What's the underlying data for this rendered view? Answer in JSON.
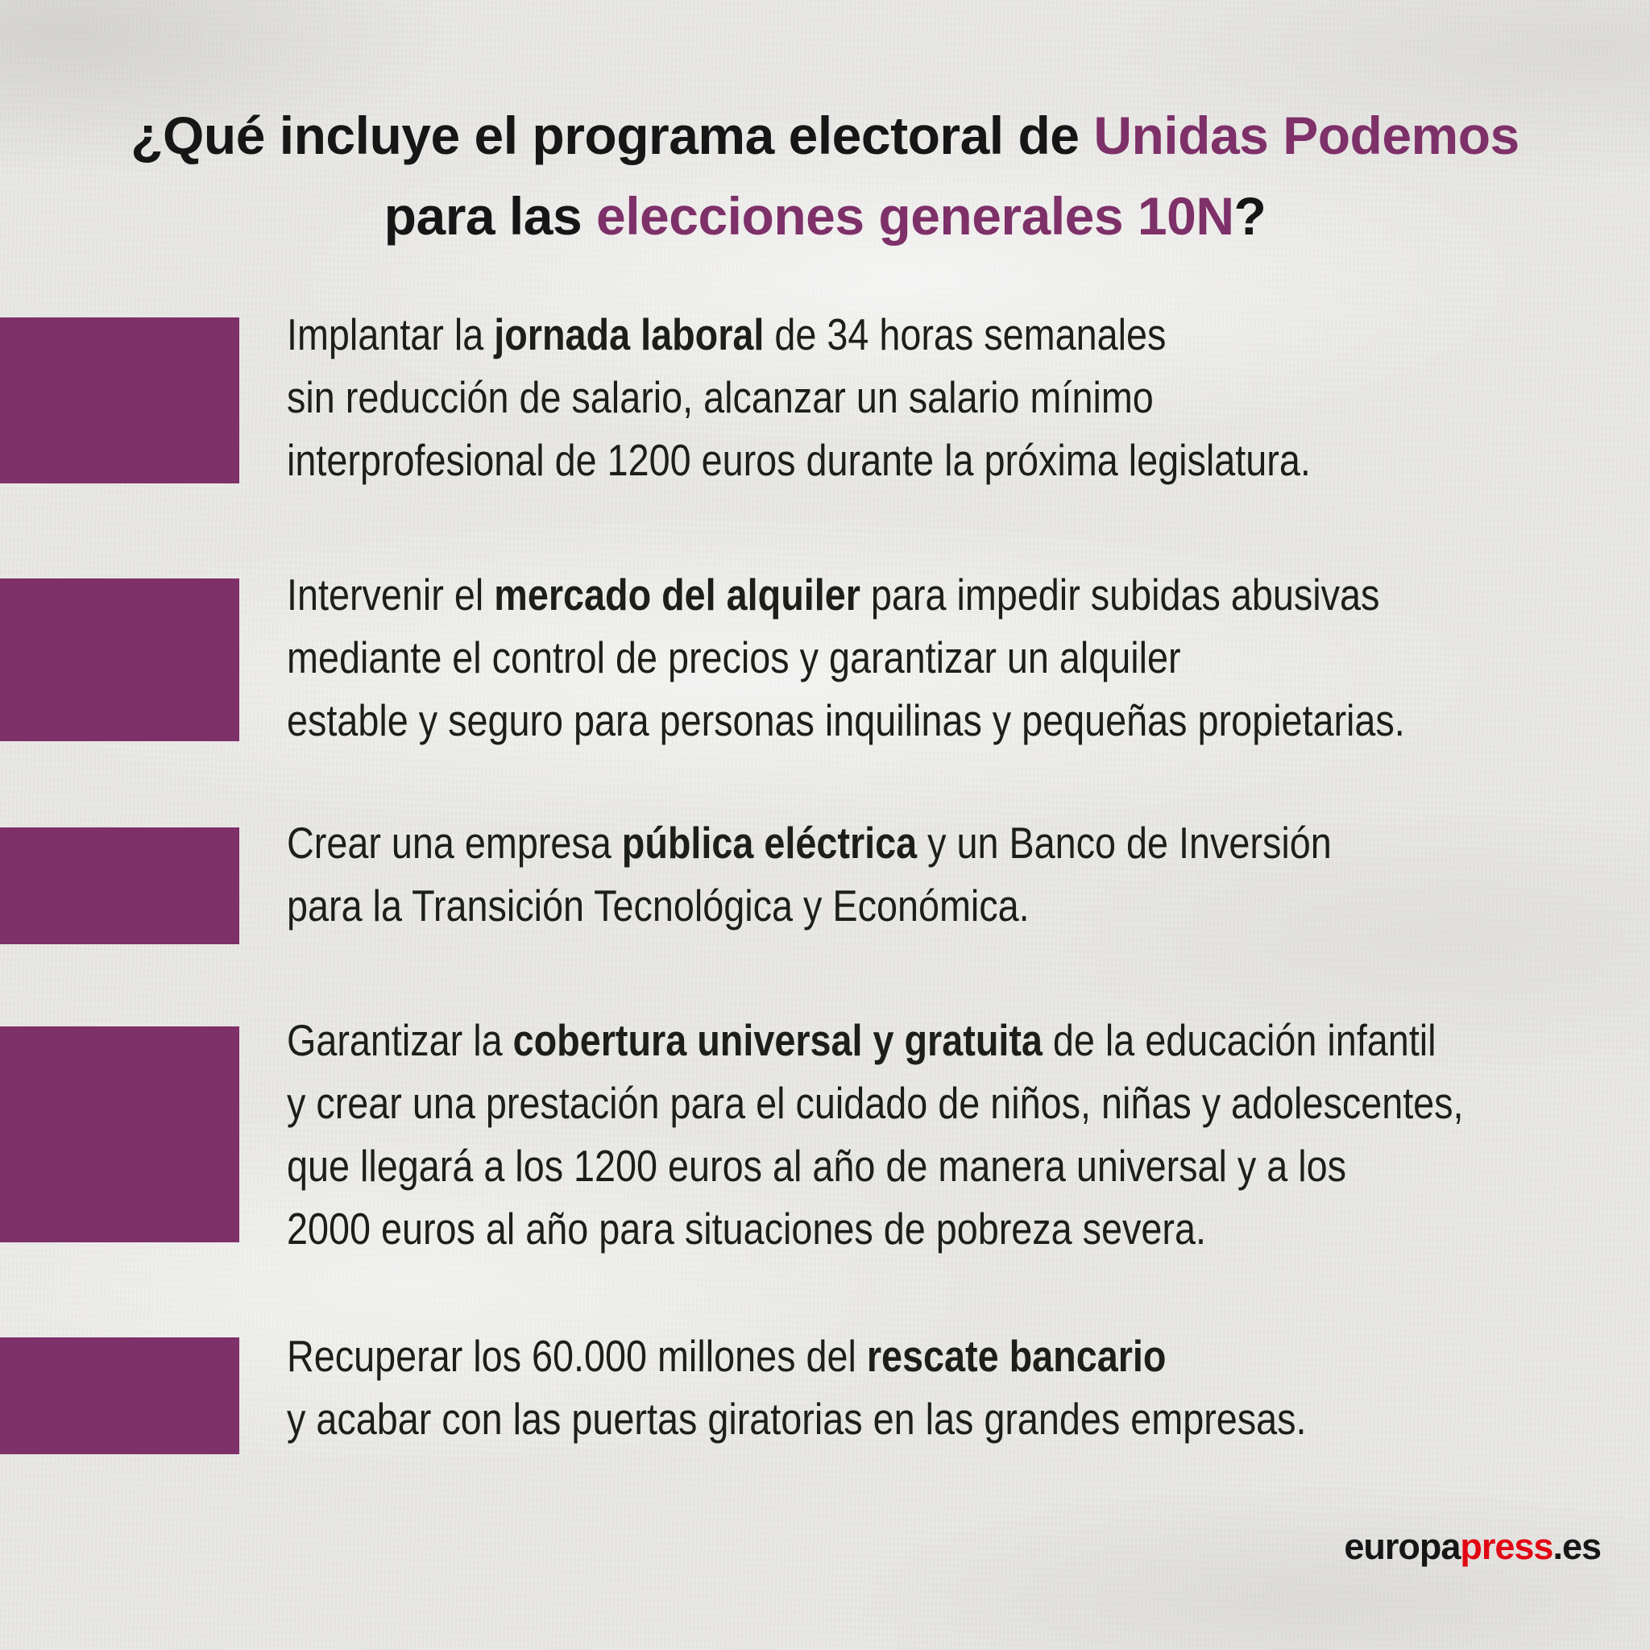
{
  "colors": {
    "purple": "#7e3069",
    "red": "#e20613",
    "ink": "#1d1d1b",
    "paper": "#e9e8e5"
  },
  "title": {
    "segments": [
      {
        "text": "¿Qué incluye el programa electoral de "
      },
      {
        "text": "Unidas Podemos",
        "style": "purple"
      },
      {
        "text": "\npara las "
      },
      {
        "text": "elecciones generales 10N",
        "style": "purple"
      },
      {
        "text": "?"
      }
    ]
  },
  "items": [
    {
      "segments": [
        {
          "text": "Implantar la "
        },
        {
          "text": "jornada laboral",
          "style": "bold"
        },
        {
          "text": " de 34 horas semanales\nsin reducción de salario, alcanzar un salario mínimo\ninterprofesional de 1200 euros durante la próxima legislatura."
        }
      ]
    },
    {
      "segments": [
        {
          "text": "Intervenir el "
        },
        {
          "text": "mercado del alquiler",
          "style": "bold"
        },
        {
          "text": " para impedir subidas abusivas\nmediante el control de precios y garantizar un alquiler\nestable y seguro para personas inquilinas y pequeñas propietarias."
        }
      ]
    },
    {
      "segments": [
        {
          "text": "Crear una empresa "
        },
        {
          "text": "pública eléctrica",
          "style": "bold"
        },
        {
          "text": " y un Banco de Inversión\npara la Transición Tecnológica y Económica."
        }
      ]
    },
    {
      "segments": [
        {
          "text": "Garantizar la "
        },
        {
          "text": "cobertura universal y gratuita",
          "style": "bold"
        },
        {
          "text": " de la educación infantil\ny crear una prestación para el cuidado de niños, niñas y adolescentes,\nque llegará a los 1200 euros al año de manera universal y a los\n2000 euros al año para situaciones de pobreza severa."
        }
      ]
    },
    {
      "segments": [
        {
          "text": "Recuperar los 60.000 millones del "
        },
        {
          "text": "rescate bancario",
          "style": "bold"
        },
        {
          "text": "\ny acabar con las puertas giratorias en las grandes empresas."
        }
      ]
    }
  ],
  "footer": {
    "segments": [
      {
        "text": "europa",
        "style": "bold"
      },
      {
        "text": "press",
        "style": "bold red"
      },
      {
        "text": ".es",
        "style": "bold"
      }
    ]
  }
}
